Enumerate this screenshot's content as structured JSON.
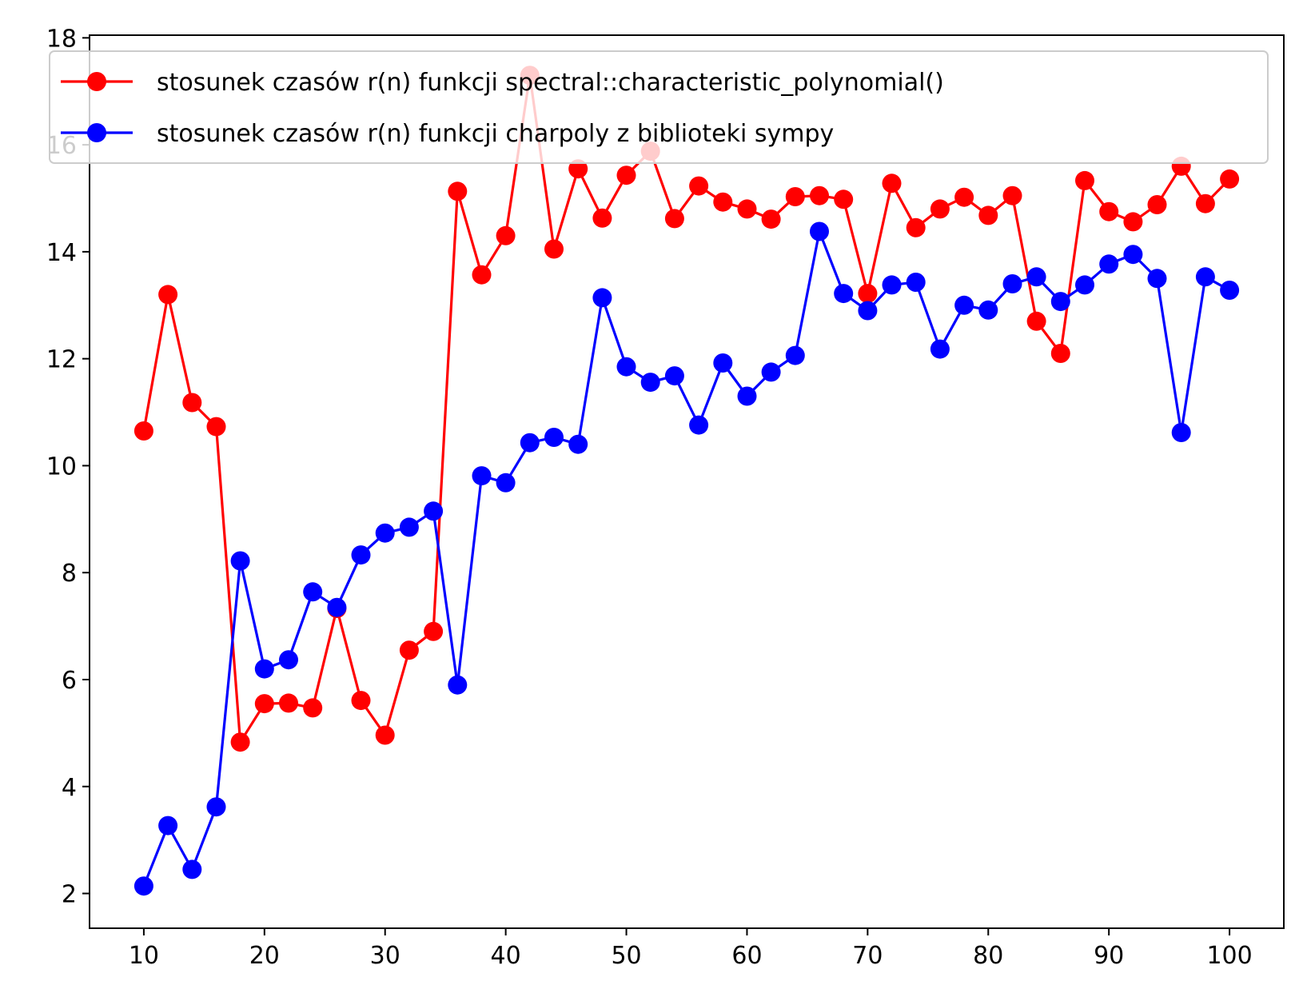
{
  "chart_data": {
    "type": "line",
    "title": "",
    "xlabel": "",
    "ylabel": "",
    "xlim": [
      5.5,
      104.5
    ],
    "ylim": [
      1.35,
      18.05
    ],
    "x_ticks": [
      10,
      20,
      30,
      40,
      50,
      60,
      70,
      80,
      90,
      100
    ],
    "y_ticks": [
      2,
      4,
      6,
      8,
      10,
      12,
      14,
      16,
      18
    ],
    "grid": false,
    "legend_position": "top",
    "x": [
      10,
      12,
      14,
      16,
      18,
      20,
      22,
      24,
      26,
      28,
      30,
      32,
      34,
      36,
      38,
      40,
      42,
      44,
      46,
      48,
      50,
      52,
      54,
      56,
      58,
      60,
      62,
      64,
      66,
      68,
      70,
      72,
      74,
      76,
      78,
      80,
      82,
      84,
      86,
      88,
      90,
      92,
      94,
      96,
      98,
      100
    ],
    "series": [
      {
        "name": "stosunek czasów r(n) funkcji spectral::characteristic_polynomial()",
        "color": "#ff0000",
        "marker": "circle",
        "values": [
          10.65,
          13.2,
          11.18,
          10.73,
          4.83,
          5.55,
          5.56,
          5.47,
          7.33,
          5.61,
          4.96,
          6.55,
          6.9,
          15.13,
          13.57,
          14.3,
          17.3,
          14.05,
          15.55,
          14.63,
          15.43,
          15.88,
          14.62,
          15.23,
          14.93,
          14.8,
          14.61,
          15.03,
          15.05,
          14.98,
          13.22,
          15.28,
          14.45,
          14.8,
          15.02,
          14.68,
          15.05,
          12.7,
          12.1,
          15.33,
          14.75,
          14.56,
          14.88,
          15.6,
          14.9,
          15.36
        ]
      },
      {
        "name": "stosunek czasów r(n) funkcji charpoly z biblioteki sympy",
        "color": "#0000ff",
        "marker": "circle",
        "values": [
          2.14,
          3.27,
          2.45,
          3.62,
          8.22,
          6.2,
          6.37,
          7.64,
          7.35,
          8.33,
          8.74,
          8.85,
          9.15,
          5.9,
          9.81,
          9.68,
          10.43,
          10.53,
          10.4,
          13.14,
          11.85,
          11.56,
          11.68,
          10.76,
          11.92,
          11.3,
          11.75,
          12.06,
          14.38,
          13.22,
          12.9,
          13.38,
          13.43,
          12.18,
          13.0,
          12.91,
          13.4,
          13.53,
          13.07,
          13.38,
          13.77,
          13.95,
          13.5,
          10.62,
          13.53,
          13.28
        ]
      }
    ]
  }
}
